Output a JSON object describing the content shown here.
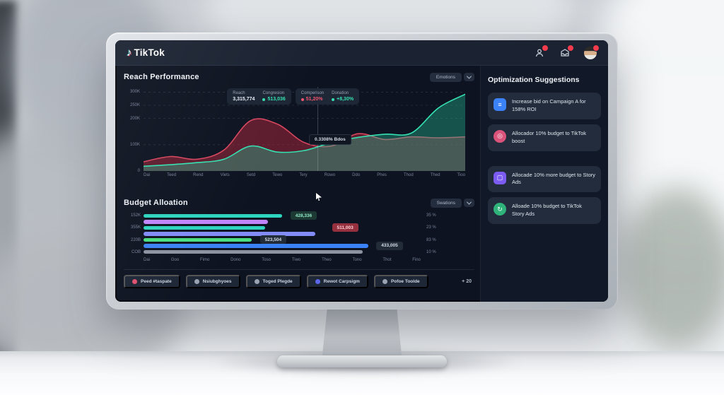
{
  "colors": {
    "accent_red": "#d5455e",
    "accent_teal": "#35e0b0",
    "screen_bg": "#0d1320",
    "navbar_bg": "#1b2332",
    "card_bg": "#232c3c"
  },
  "nav": {
    "brand": "TikTok",
    "note_glyph": "♪"
  },
  "reach_panel": {
    "title": "Reach Performance",
    "filter_label": "Emotions",
    "legend_cards": [
      {
        "cells": [
          {
            "label": "Reach",
            "value": "3,315,774",
            "color": "white",
            "dot": false
          },
          {
            "label": "Congresion",
            "value": "513,036",
            "color": "teal",
            "dot": true
          }
        ]
      },
      {
        "cells": [
          {
            "label": "Comperison",
            "value": "51,20%",
            "color": "red",
            "dot": true
          },
          {
            "label": "Donation",
            "value": "+8,30%",
            "color": "teal",
            "dot": true
          }
        ]
      }
    ],
    "tooltip": "0.3308%  Bdos"
  },
  "budget_panel": {
    "title": "Budget Alloation",
    "filter_label": "Swations",
    "left_labels": [
      "152K",
      "355K",
      "220B",
      "COB"
    ],
    "right_labels": [
      "35 %",
      "23 %",
      "83 %",
      "10 %"
    ]
  },
  "filters": {
    "buttons": [
      {
        "icon": "hashtag-dot-icon",
        "dot_color": "#e0506e",
        "label": "Peed #taspate"
      },
      {
        "icon": "globe-dot-icon",
        "dot_color": "#99a3b1",
        "label": "Nsiubghyoes"
      },
      {
        "icon": "gear-dot-icon",
        "dot_color": "#99a3b1",
        "label": "Toged Plegde"
      },
      {
        "icon": "target-dot-icon",
        "dot_color": "#5b67e8",
        "label": "Rewot Carpsigm"
      },
      {
        "icon": "badge-dot-icon",
        "dot_color": "#99a3b1",
        "label": "Pofoe Toolde"
      }
    ],
    "more_label": "+ 20"
  },
  "suggestions": {
    "title": "Optimization Suggestions",
    "items": [
      {
        "icon": "list-icon",
        "glyph": "≡",
        "icon_color": "#3b82f6",
        "shape": "square",
        "text": "Increase bid on Campaign A for 158% ROI",
        "gap_before": false
      },
      {
        "icon": "target-icon",
        "glyph": "◎",
        "icon_color": "#d9537a",
        "shape": "circle",
        "text": "Allocador 10% budget to TikTok boost",
        "gap_before": false
      },
      {
        "icon": "frame-icon",
        "glyph": "▢",
        "icon_color": "#7c5cf0",
        "shape": "square",
        "text": "Allocade 10% more budget to Story Ads",
        "gap_before": true
      },
      {
        "icon": "refresh-icon",
        "glyph": "↻",
        "icon_color": "#2fb37a",
        "shape": "circle",
        "text": "Alloade 10% budget to TikTok Story Ads",
        "gap_before": false
      }
    ]
  },
  "chart_data": [
    {
      "type": "area",
      "title": "Reach Performance",
      "x": [
        "Dai",
        "Teed",
        "Rend",
        "Viets",
        "Setd",
        "Tewo",
        "Tery",
        "Rowo",
        "Ddo",
        "Phes",
        "Thod",
        "Thed",
        "Tioo"
      ],
      "yticks": [
        {
          "label": "300K",
          "value": 300
        },
        {
          "label": "250K",
          "value": 250
        },
        {
          "label": "200K",
          "value": 200
        },
        {
          "label": "100K",
          "value": 100
        },
        {
          "label": "0",
          "value": 0
        }
      ],
      "ylim": [
        0,
        320
      ],
      "grid": true,
      "legend_position": "top",
      "crosshair_x_index": 6.5,
      "series": [
        {
          "name": "Comperison",
          "color": "#d5455e",
          "fill": "rgba(176,40,60,0.5)",
          "values": [
            35,
            55,
            45,
            80,
            192,
            178,
            108,
            95,
            142,
            120,
            130,
            126,
            130
          ]
        },
        {
          "name": "Reach",
          "color": "#35e0b0",
          "fill": "rgba(36,190,150,0.38)",
          "values": [
            18,
            24,
            32,
            45,
            95,
            72,
            78,
            108,
            128,
            140,
            145,
            240,
            292
          ]
        }
      ]
    },
    {
      "type": "bar",
      "title": "Budget Alloation",
      "orientation": "horizontal",
      "x": [
        "Dai",
        "Goo",
        "Fimo",
        "Dono",
        "Toso",
        "Tiwo",
        "Theo",
        "Tono",
        "Thot",
        "Fino"
      ],
      "bars": [
        {
          "color": "#2dd4bf",
          "pct": 50,
          "badge": {
            "text": "428,336",
            "style": "green",
            "left_pct": 53
          }
        },
        {
          "color": "#c084fc",
          "pct": 45,
          "badge": null
        },
        {
          "color": "#2dd4bf",
          "pct": 44,
          "badge": {
            "text": "511,003",
            "style": "red",
            "left_pct": 68
          }
        },
        {
          "color": "#818cf8",
          "pct": 62,
          "badge": null
        },
        {
          "color": "#4ade80",
          "pct": 39,
          "badge": {
            "text": "523,504",
            "style": "dark",
            "left_pct": 42
          }
        },
        {
          "color": "#3b82f6",
          "pct": 81,
          "badge": {
            "text": "433,005",
            "style": "dark",
            "left_pct": 84
          }
        },
        {
          "color": "#8b93a1",
          "pct": 79,
          "badge": null
        }
      ]
    }
  ]
}
